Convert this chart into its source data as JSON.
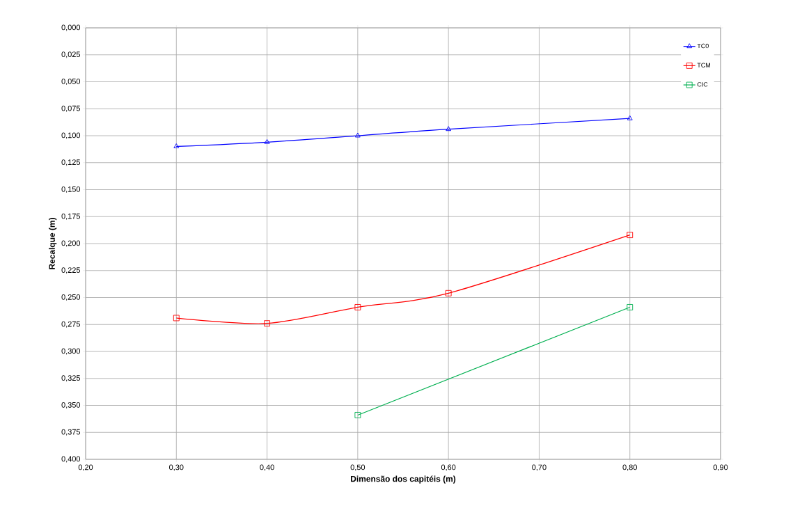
{
  "chart_data": {
    "type": "line",
    "xlabel": "Dimensão dos capitéis (m)",
    "ylabel": "Recalque (m)",
    "x": [
      0.3,
      0.4,
      0.5,
      0.6,
      0.8
    ],
    "series": [
      {
        "name": "TC0",
        "color": "#0000ff",
        "marker": "triangle",
        "values": [
          0.11,
          0.106,
          0.1,
          0.094,
          0.084
        ]
      },
      {
        "name": "TCM",
        "color": "#ff0000",
        "marker": "square",
        "values": [
          0.269,
          0.274,
          0.259,
          0.246,
          0.192
        ]
      },
      {
        "name": "CIC",
        "color": "#00b050",
        "marker": "square",
        "values": [
          null,
          null,
          0.359,
          null,
          0.259
        ]
      }
    ],
    "xlim": [
      0.2,
      0.9
    ],
    "xticks": [
      {
        "value": 0.2,
        "label": "0,20"
      },
      {
        "value": 0.3,
        "label": "0,30"
      },
      {
        "value": 0.4,
        "label": "0,40"
      },
      {
        "value": 0.5,
        "label": "0,50"
      },
      {
        "value": 0.6,
        "label": "0,60"
      },
      {
        "value": 0.7,
        "label": "0,70"
      },
      {
        "value": 0.8,
        "label": "0,80"
      },
      {
        "value": 0.9,
        "label": "0,90"
      }
    ],
    "ylim": [
      0.4,
      0.0
    ],
    "yticks": [
      {
        "value": 0.0,
        "label": "0,000"
      },
      {
        "value": 0.025,
        "label": "0,025"
      },
      {
        "value": 0.05,
        "label": "0,050"
      },
      {
        "value": 0.075,
        "label": "0,075"
      },
      {
        "value": 0.1,
        "label": "0,100"
      },
      {
        "value": 0.125,
        "label": "0,125"
      },
      {
        "value": 0.15,
        "label": "0,150"
      },
      {
        "value": 0.175,
        "label": "0,175"
      },
      {
        "value": 0.2,
        "label": "0,200"
      },
      {
        "value": 0.225,
        "label": "0,225"
      },
      {
        "value": 0.25,
        "label": "0,250"
      },
      {
        "value": 0.275,
        "label": "0,275"
      },
      {
        "value": 0.3,
        "label": "0,300"
      },
      {
        "value": 0.325,
        "label": "0,325"
      },
      {
        "value": 0.35,
        "label": "0,350"
      },
      {
        "value": 0.375,
        "label": "0,375"
      },
      {
        "value": 0.4,
        "label": "0,400"
      }
    ],
    "grid": true,
    "legend": "top right"
  }
}
